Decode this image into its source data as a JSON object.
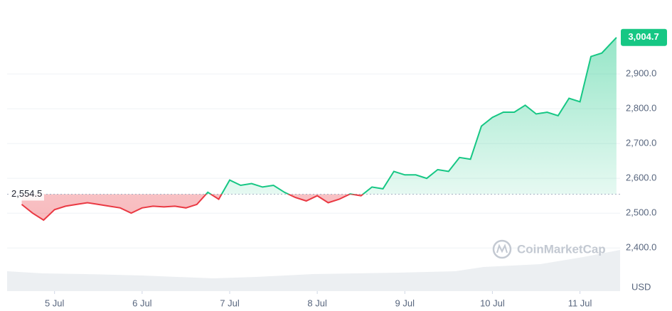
{
  "chart_data": {
    "type": "line",
    "x": [
      -9,
      -6,
      -3,
      0,
      3,
      6,
      9,
      12,
      15,
      18,
      21,
      24,
      27,
      30,
      33,
      36,
      39,
      42,
      45,
      48,
      51,
      54,
      57,
      60,
      63,
      66,
      69,
      72,
      75,
      78,
      81,
      84,
      87,
      90,
      93,
      96,
      99,
      102,
      105,
      108,
      111,
      114,
      117,
      120,
      123,
      126,
      129,
      132,
      135,
      138,
      141,
      144,
      147,
      150,
      154
    ],
    "values": [
      2525,
      2500,
      2480,
      2510,
      2520,
      2525,
      2530,
      2525,
      2520,
      2515,
      2500,
      2515,
      2520,
      2518,
      2520,
      2515,
      2525,
      2560,
      2540,
      2595,
      2580,
      2585,
      2575,
      2580,
      2560,
      2545,
      2535,
      2550,
      2530,
      2540,
      2555,
      2550,
      2575,
      2570,
      2620,
      2610,
      2610,
      2600,
      2625,
      2620,
      2660,
      2655,
      2750,
      2775,
      2790,
      2790,
      2810,
      2785,
      2790,
      2780,
      2830,
      2820,
      2950,
      2960,
      3004.7
    ],
    "up_color": "#16c784",
    "down_color": "#ea3943",
    "baseline": {
      "value": 2554.5,
      "label": "2,554.5"
    },
    "last_price": {
      "value": 3004.7,
      "label": "3,004.7"
    },
    "xlim": [
      -13,
      155
    ],
    "ylim": [
      2276,
      3092
    ],
    "xticks": [
      {
        "value": 0,
        "label": "5 Jul"
      },
      {
        "value": 24,
        "label": "6 Jul"
      },
      {
        "value": 48,
        "label": "7 Jul"
      },
      {
        "value": 72,
        "label": "8 Jul"
      },
      {
        "value": 96,
        "label": "9 Jul"
      },
      {
        "value": 120,
        "label": "10 Jul"
      },
      {
        "value": 144,
        "label": "11 Jul"
      }
    ],
    "yticks": [
      {
        "value": 2400,
        "label": "2,400.0"
      },
      {
        "value": 2500,
        "label": "2,500.0"
      },
      {
        "value": 2600,
        "label": "2,600.0"
      },
      {
        "value": 2700,
        "label": "2,700.0"
      },
      {
        "value": 2800,
        "label": "2,800.0"
      },
      {
        "value": 2900,
        "label": "2,900.0"
      }
    ],
    "y_axis_label": "USD",
    "watermark": "CoinMarketCap",
    "grid": true
  }
}
